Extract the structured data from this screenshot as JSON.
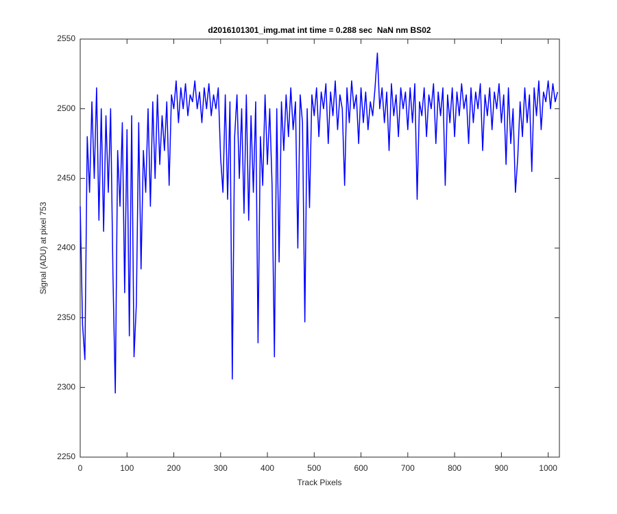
{
  "chart_data": {
    "type": "line",
    "title": "d2016101301_img.mat int time = 0.288 sec  NaN nm BS02",
    "xlabel": "Track Pixels",
    "ylabel": "Signal (ADU) at pixel 753",
    "color": "#0000ff",
    "x": [
      0,
      5,
      10,
      15,
      20,
      25,
      30,
      35,
      40,
      45,
      50,
      55,
      60,
      65,
      70,
      75,
      80,
      85,
      90,
      95,
      100,
      105,
      110,
      115,
      120,
      125,
      130,
      135,
      140,
      145,
      150,
      155,
      160,
      165,
      170,
      175,
      180,
      185,
      190,
      195,
      200,
      205,
      210,
      215,
      220,
      225,
      230,
      235,
      240,
      245,
      250,
      255,
      260,
      265,
      270,
      275,
      280,
      285,
      290,
      295,
      300,
      305,
      310,
      315,
      320,
      325,
      330,
      335,
      340,
      345,
      350,
      355,
      360,
      365,
      370,
      375,
      380,
      385,
      390,
      395,
      400,
      405,
      410,
      415,
      420,
      425,
      430,
      435,
      440,
      445,
      450,
      455,
      460,
      465,
      470,
      475,
      480,
      485,
      490,
      495,
      500,
      505,
      510,
      515,
      520,
      525,
      530,
      535,
      540,
      545,
      550,
      555,
      560,
      565,
      570,
      575,
      580,
      585,
      590,
      595,
      600,
      605,
      610,
      615,
      620,
      625,
      630,
      635,
      640,
      645,
      650,
      655,
      660,
      665,
      670,
      675,
      680,
      685,
      690,
      695,
      700,
      705,
      710,
      715,
      720,
      725,
      730,
      735,
      740,
      745,
      750,
      755,
      760,
      765,
      770,
      775,
      780,
      785,
      790,
      795,
      800,
      805,
      810,
      815,
      820,
      825,
      830,
      835,
      840,
      845,
      850,
      855,
      860,
      865,
      870,
      875,
      880,
      885,
      890,
      895,
      900,
      905,
      910,
      915,
      920,
      925,
      930,
      935,
      940,
      945,
      950,
      955,
      960,
      965,
      970,
      975,
      980,
      985,
      990,
      995,
      1000,
      1005,
      1010,
      1015,
      1020
    ],
    "values": [
      2430,
      2345,
      2320,
      2480,
      2440,
      2505,
      2450,
      2515,
      2420,
      2500,
      2412,
      2495,
      2440,
      2500,
      2380,
      2296,
      2470,
      2430,
      2490,
      2368,
      2485,
      2337,
      2495,
      2322,
      2360,
      2490,
      2385,
      2470,
      2440,
      2500,
      2430,
      2505,
      2450,
      2510,
      2460,
      2495,
      2470,
      2505,
      2445,
      2510,
      2500,
      2520,
      2490,
      2515,
      2500,
      2518,
      2495,
      2510,
      2505,
      2520,
      2500,
      2512,
      2490,
      2515,
      2500,
      2518,
      2495,
      2510,
      2500,
      2515,
      2465,
      2440,
      2510,
      2435,
      2505,
      2306,
      2480,
      2510,
      2450,
      2500,
      2425,
      2510,
      2420,
      2495,
      2440,
      2505,
      2332,
      2480,
      2445,
      2510,
      2460,
      2500,
      2445,
      2322,
      2500,
      2390,
      2505,
      2470,
      2510,
      2480,
      2515,
      2485,
      2505,
      2400,
      2510,
      2490,
      2347,
      2500,
      2429,
      2510,
      2495,
      2515,
      2480,
      2512,
      2500,
      2518,
      2475,
      2512,
      2495,
      2520,
      2485,
      2510,
      2500,
      2445,
      2515,
      2490,
      2520,
      2500,
      2510,
      2475,
      2515,
      2490,
      2512,
      2485,
      2505,
      2495,
      2515,
      2540,
      2500,
      2515,
      2490,
      2512,
      2470,
      2518,
      2495,
      2510,
      2480,
      2515,
      2500,
      2512,
      2485,
      2515,
      2490,
      2518,
      2435,
      2505,
      2495,
      2515,
      2480,
      2510,
      2500,
      2518,
      2475,
      2512,
      2495,
      2515,
      2445,
      2510,
      2490,
      2515,
      2480,
      2512,
      2495,
      2518,
      2500,
      2510,
      2475,
      2515,
      2490,
      2512,
      2500,
      2518,
      2470,
      2510,
      2495,
      2515,
      2485,
      2512,
      2500,
      2518,
      2490,
      2510,
      2460,
      2515,
      2475,
      2500,
      2440,
      2465,
      2505,
      2480,
      2515,
      2490,
      2510,
      2455,
      2515,
      2495,
      2520,
      2485,
      2512,
      2505,
      2520,
      2500,
      2518,
      2505,
      2512
    ],
    "xlim": [
      0,
      1024
    ],
    "xticks": [
      0,
      100,
      200,
      300,
      400,
      500,
      600,
      700,
      800,
      900,
      1000
    ],
    "ylim": [
      2250,
      2550
    ],
    "yticks": [
      2250,
      2300,
      2350,
      2400,
      2450,
      2500,
      2550
    ]
  }
}
